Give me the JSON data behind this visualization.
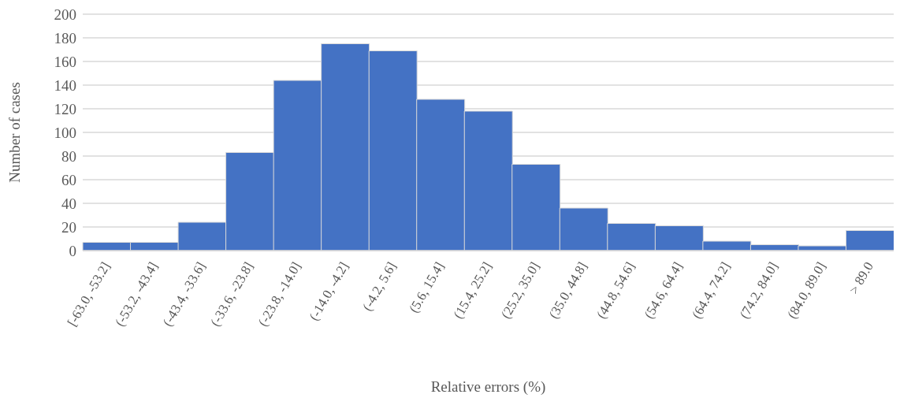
{
  "chart_data": {
    "type": "bar",
    "xlabel": "Relative errors (%)",
    "ylabel": "Number of cases",
    "categories": [
      "[-63.0, -53.2]",
      "(-53.2, -43.4]",
      "(-43.4, -33.6]",
      "(-33.6, -23.8]",
      "(-23.8, -14.0]",
      "(-14.0, -4.2]",
      "(-4.2, 5.6]",
      "(5.6, 15.4]",
      "(15.4, 25.2]",
      "(25.2, 35.0]",
      "(35.0, 44.8]",
      "(44.8, 54.6]",
      "(54.6, 64.4]",
      "(64.4, 74.2]",
      "(74.2, 84.0]",
      "(84.0, 89.0]",
      "> 89.0"
    ],
    "values": [
      7,
      7,
      24,
      83,
      144,
      175,
      169,
      128,
      118,
      73,
      36,
      23,
      21,
      8,
      5,
      4,
      17
    ],
    "color": "#4472c4",
    "ylim": [
      0,
      200
    ],
    "yticks": [
      0,
      20,
      40,
      60,
      80,
      100,
      120,
      140,
      160,
      180,
      200
    ],
    "grid": "y"
  }
}
